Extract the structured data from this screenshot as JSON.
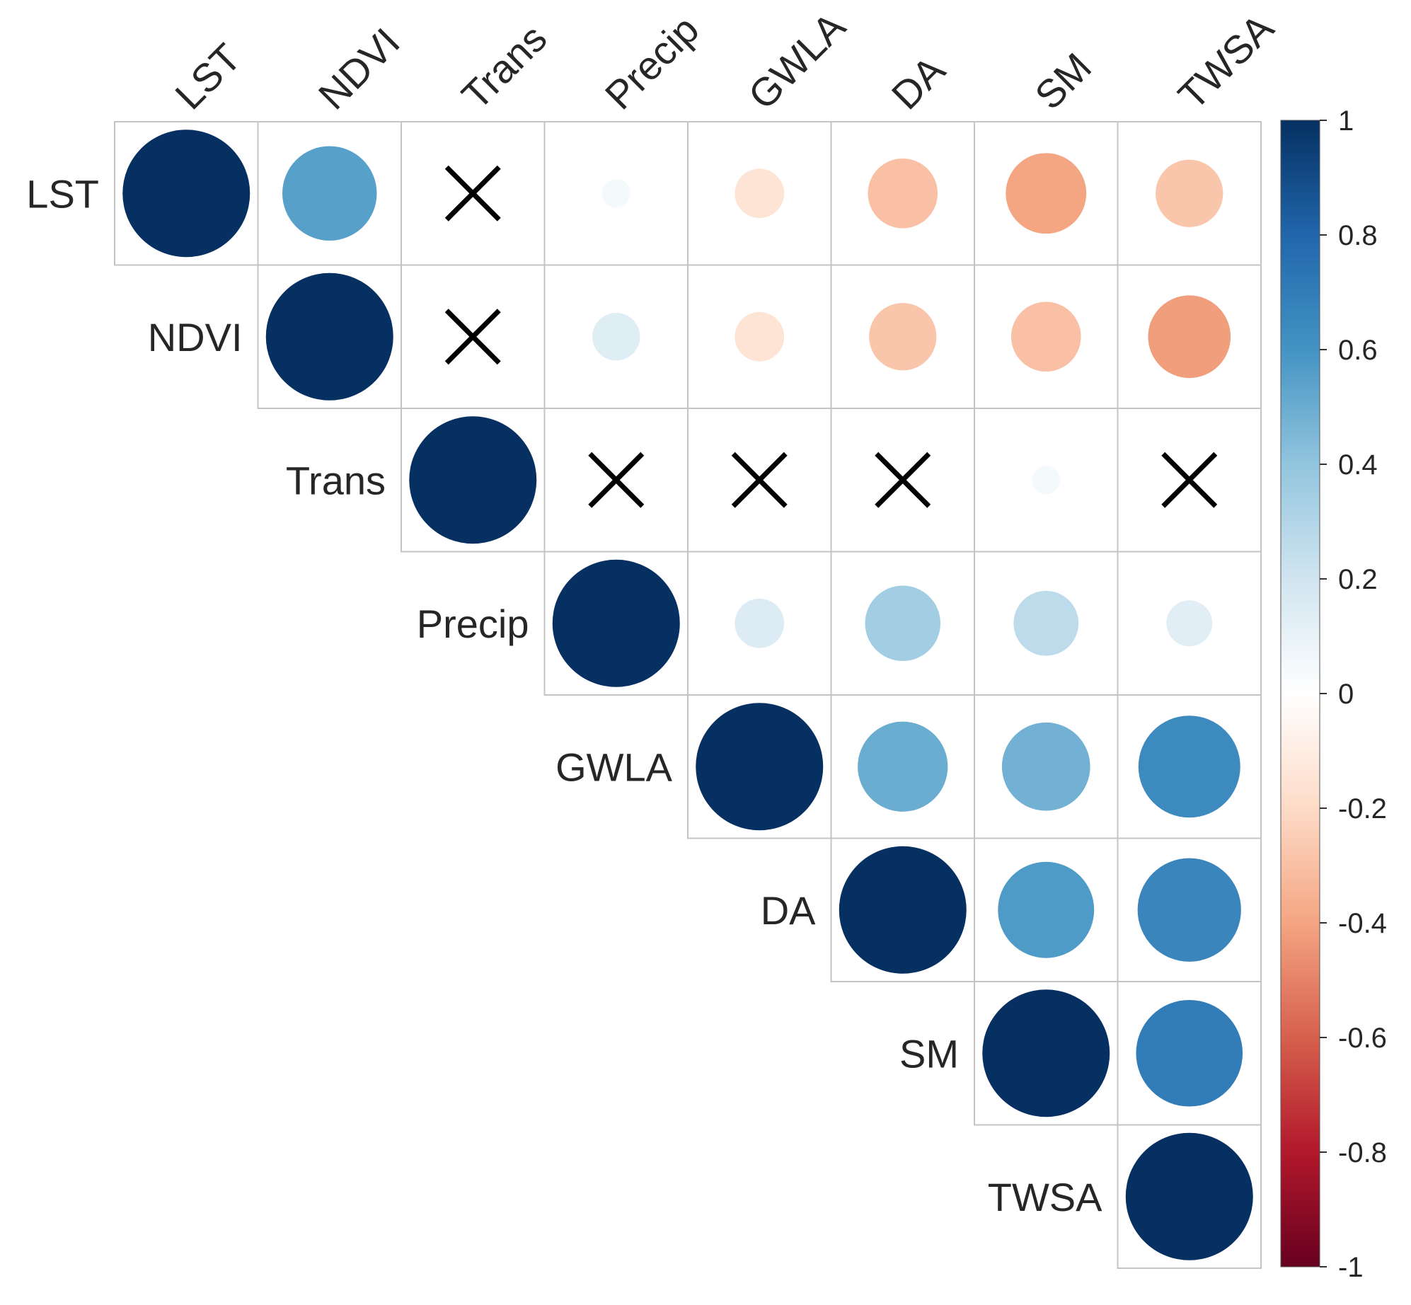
{
  "chart_data": {
    "type": "heatmap",
    "subtype": "correlation-circle-upper-triangle",
    "title": "",
    "variables": [
      "LST",
      "NDVI",
      "Trans",
      "Precip",
      "GWLA",
      "DA",
      "SM",
      "TWSA"
    ],
    "matrix": [
      [
        1.0,
        0.55,
        null,
        0.05,
        -0.15,
        -0.3,
        -0.4,
        -0.28
      ],
      [
        null,
        1.0,
        null,
        0.14,
        -0.15,
        -0.28,
        -0.3,
        -0.42
      ],
      [
        null,
        null,
        1.0,
        null,
        null,
        null,
        0.05,
        null
      ],
      [
        null,
        null,
        null,
        1.0,
        0.15,
        0.35,
        0.26,
        0.13
      ],
      [
        null,
        null,
        null,
        null,
        1.0,
        0.5,
        0.48,
        0.64
      ],
      [
        null,
        null,
        null,
        null,
        null,
        1.0,
        0.57,
        0.66
      ],
      [
        null,
        null,
        null,
        null,
        null,
        null,
        1.0,
        0.7
      ],
      [
        null,
        null,
        null,
        null,
        null,
        null,
        null,
        1.0
      ]
    ],
    "insignificant": [
      [
        0,
        2
      ],
      [
        1,
        2
      ],
      [
        2,
        3
      ],
      [
        2,
        4
      ],
      [
        2,
        5
      ],
      [
        2,
        7
      ]
    ],
    "colorbar": {
      "range": [
        -1,
        1
      ],
      "ticks": [
        "1",
        "0.8",
        "0.6",
        "0.4",
        "0.2",
        "0",
        "-0.2",
        "-0.4",
        "-0.6",
        "-0.8",
        "-1"
      ],
      "tick_values": [
        1,
        0.8,
        0.6,
        0.4,
        0.2,
        0,
        -0.2,
        -0.4,
        -0.6,
        -0.8,
        -1
      ],
      "palette": [
        "#67001F",
        "#B2182B",
        "#D6604D",
        "#F4A582",
        "#FDDBC7",
        "#FFFFFF",
        "#D1E5F0",
        "#92C5DE",
        "#4393C3",
        "#2166AC",
        "#053061"
      ]
    },
    "legend_position": "right",
    "grid": true
  }
}
